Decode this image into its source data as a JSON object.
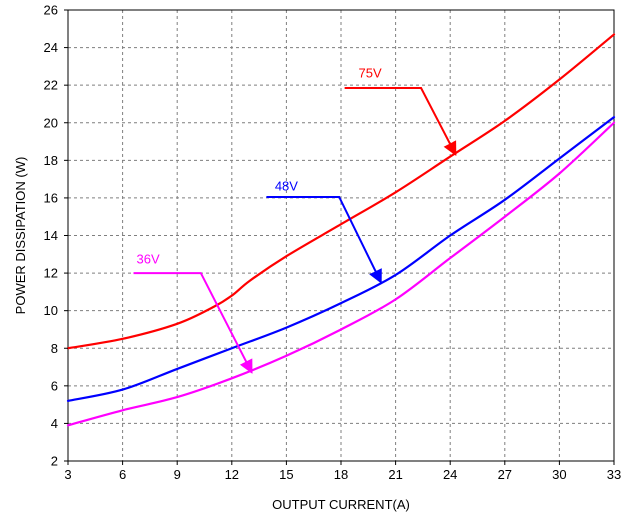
{
  "chart_data": {
    "type": "line",
    "title": "",
    "xlabel": "OUTPUT CURRENT(A)",
    "ylabel": "POWER DISSIPATION (W)",
    "xlim": [
      3,
      33
    ],
    "ylim": [
      2,
      26
    ],
    "xticks": [
      3,
      6,
      9,
      12,
      15,
      18,
      21,
      24,
      27,
      30,
      33
    ],
    "yticks": [
      2,
      4,
      6,
      8,
      10,
      12,
      14,
      16,
      18,
      20,
      22,
      24,
      26
    ],
    "grid": "dashed",
    "legend": "none",
    "series": [
      {
        "name": "75V",
        "color": "#ff0000",
        "x": [
          3,
          6,
          9,
          11,
          12,
          13,
          15,
          18,
          21,
          24,
          27,
          30,
          33
        ],
        "y": [
          8.0,
          8.5,
          9.3,
          10.2,
          10.8,
          11.6,
          12.9,
          14.6,
          16.3,
          18.2,
          20.1,
          22.3,
          24.7
        ]
      },
      {
        "name": "48V",
        "color": "#0000ff",
        "x": [
          3,
          6,
          9,
          12,
          15,
          18,
          21,
          24,
          27,
          30,
          33
        ],
        "y": [
          5.2,
          5.8,
          6.9,
          8.0,
          9.1,
          10.4,
          11.9,
          14.0,
          15.9,
          18.1,
          20.3
        ]
      },
      {
        "name": "36V",
        "color": "#ff00ff",
        "x": [
          3,
          6,
          9,
          12,
          15,
          18,
          21,
          24,
          27,
          30,
          33
        ],
        "y": [
          3.9,
          4.7,
          5.4,
          6.4,
          7.6,
          9.0,
          10.6,
          12.8,
          15.0,
          17.3,
          20.0
        ]
      }
    ],
    "annotations": [
      {
        "text": "75V",
        "color": "#ff0000",
        "label_at": [
          19.6,
          22.4
        ],
        "line_start": [
          18.2,
          21.85
        ],
        "line_knee": [
          22.4,
          21.85
        ],
        "arrow_to": [
          24.3,
          18.3
        ]
      },
      {
        "text": "48V",
        "color": "#0000ff",
        "label_at": [
          15.0,
          16.4
        ],
        "line_start": [
          13.9,
          16.05
        ],
        "line_knee": [
          17.9,
          16.05
        ],
        "arrow_to": [
          20.2,
          11.5
        ]
      },
      {
        "text": "36V",
        "color": "#ff00ff",
        "label_at": [
          7.4,
          12.5
        ],
        "line_start": [
          6.6,
          12.0
        ],
        "line_knee": [
          10.3,
          12.0
        ],
        "arrow_to": [
          13.1,
          6.7
        ]
      }
    ]
  }
}
